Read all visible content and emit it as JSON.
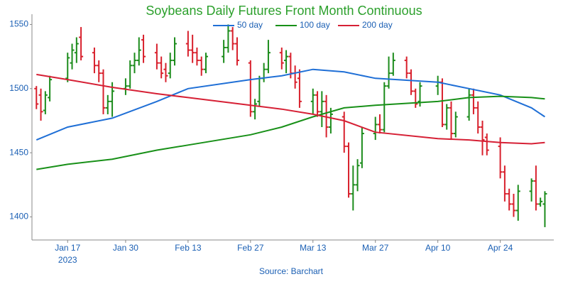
{
  "chart_data": {
    "type": "ohlc",
    "title": "Soybeans Daily Futures Front Month Continuous",
    "source": "Source: Barchart",
    "year_label": "2023",
    "up_color": "#1c8c1c",
    "down_color": "#d8202c",
    "xlim": [
      9,
      126
    ],
    "xticks": [
      {
        "value": 17,
        "label": "Jan 17"
      },
      {
        "value": 30,
        "label": "Jan 30"
      },
      {
        "value": 44,
        "label": "Feb 13"
      },
      {
        "value": 58,
        "label": "Feb 27"
      },
      {
        "value": 72,
        "label": "Mar 13"
      },
      {
        "value": 86,
        "label": "Mar 27"
      },
      {
        "value": 100,
        "label": "Apr 10"
      },
      {
        "value": 114,
        "label": "Apr 24"
      }
    ],
    "ylim": [
      1382,
      1558
    ],
    "yticks": [
      1400,
      1450,
      1500,
      1550
    ],
    "x": [
      10,
      11,
      12,
      13,
      17,
      18,
      19,
      20,
      23,
      24,
      25,
      26,
      27,
      30,
      31,
      32,
      33,
      34,
      37,
      38,
      39,
      40,
      41,
      44,
      45,
      46,
      47,
      48,
      52,
      53,
      54,
      55,
      58,
      59,
      60,
      61,
      62,
      65,
      66,
      67,
      68,
      69,
      72,
      73,
      74,
      75,
      76,
      79,
      80,
      81,
      82,
      83,
      86,
      87,
      88,
      89,
      90,
      93,
      94,
      95,
      96,
      100,
      101,
      102,
      103,
      104,
      107,
      108,
      109,
      110,
      111,
      114,
      115,
      116,
      117,
      118,
      121,
      122,
      123,
      124
    ],
    "open": [
      1500,
      1495,
      1483,
      1493,
      1508,
      1520,
      1528,
      1540,
      1528,
      1518,
      1512,
      1485,
      1490,
      1500,
      1502,
      1518,
      1522,
      1538,
      1528,
      1520,
      1515,
      1512,
      1522,
      1535,
      1530,
      1528,
      1522,
      1515,
      1525,
      1532,
      1545,
      1535,
      1520,
      1482,
      1490,
      1508,
      1515,
      1528,
      1522,
      1525,
      1512,
      1508,
      1490,
      1495,
      1482,
      1490,
      1470,
      1478,
      1455,
      1418,
      1425,
      1442,
      1465,
      1472,
      1468,
      1502,
      1512,
      1522,
      1512,
      1498,
      1490,
      1502,
      1505,
      1472,
      1485,
      1465,
      1478,
      1495,
      1485,
      1470,
      1462,
      1455,
      1435,
      1418,
      1410,
      1405,
      1420,
      1428,
      1410,
      1410
    ],
    "high": [
      1502,
      1500,
      1498,
      1510,
      1528,
      1535,
      1540,
      1548,
      1532,
      1522,
      1515,
      1495,
      1505,
      1508,
      1522,
      1528,
      1540,
      1542,
      1535,
      1525,
      1520,
      1528,
      1540,
      1545,
      1542,
      1532,
      1525,
      1528,
      1538,
      1550,
      1548,
      1540,
      1522,
      1492,
      1510,
      1520,
      1538,
      1532,
      1530,
      1528,
      1518,
      1515,
      1500,
      1498,
      1498,
      1495,
      1485,
      1482,
      1458,
      1440,
      1445,
      1470,
      1478,
      1480,
      1505,
      1525,
      1528,
      1525,
      1515,
      1500,
      1505,
      1510,
      1508,
      1488,
      1490,
      1482,
      1500,
      1500,
      1490,
      1475,
      1465,
      1462,
      1440,
      1422,
      1418,
      1425,
      1430,
      1440,
      1415,
      1420
    ],
    "low": [
      1484,
      1475,
      1480,
      1490,
      1505,
      1515,
      1520,
      1522,
      1512,
      1505,
      1480,
      1480,
      1478,
      1495,
      1500,
      1512,
      1518,
      1520,
      1515,
      1508,
      1505,
      1508,
      1518,
      1525,
      1520,
      1518,
      1510,
      1512,
      1520,
      1528,
      1530,
      1518,
      1478,
      1476,
      1486,
      1505,
      1512,
      1515,
      1512,
      1508,
      1500,
      1485,
      1480,
      1478,
      1470,
      1462,
      1465,
      1450,
      1415,
      1405,
      1420,
      1438,
      1460,
      1465,
      1466,
      1500,
      1510,
      1508,
      1495,
      1485,
      1486,
      1495,
      1470,
      1468,
      1460,
      1462,
      1475,
      1480,
      1465,
      1448,
      1448,
      1430,
      1412,
      1405,
      1400,
      1397,
      1412,
      1405,
      1408,
      1392
    ],
    "close": [
      1488,
      1482,
      1495,
      1507,
      1524,
      1530,
      1535,
      1525,
      1518,
      1512,
      1485,
      1490,
      1498,
      1502,
      1518,
      1522,
      1530,
      1525,
      1520,
      1512,
      1510,
      1522,
      1535,
      1530,
      1528,
      1522,
      1515,
      1525,
      1532,
      1545,
      1535,
      1522,
      1482,
      1488,
      1508,
      1515,
      1528,
      1520,
      1525,
      1512,
      1505,
      1490,
      1495,
      1482,
      1490,
      1470,
      1480,
      1455,
      1418,
      1425,
      1440,
      1465,
      1472,
      1468,
      1502,
      1512,
      1522,
      1512,
      1498,
      1488,
      1502,
      1505,
      1472,
      1485,
      1465,
      1478,
      1495,
      1485,
      1470,
      1460,
      1452,
      1435,
      1418,
      1410,
      1405,
      1420,
      1428,
      1410,
      1412,
      1418
    ],
    "series": [
      {
        "name": "50 day",
        "color": "#1f6fd6",
        "x": [
          10,
          17,
          27,
          37,
          44,
          58,
          65,
          72,
          79,
          86,
          100,
          107,
          114,
          121,
          124
        ],
        "values": [
          1460,
          1470,
          1477,
          1490,
          1500,
          1507,
          1510,
          1515,
          1513,
          1508,
          1505,
          1500,
          1495,
          1485,
          1478
        ]
      },
      {
        "name": "100 day",
        "color": "#189018",
        "x": [
          10,
          17,
          27,
          37,
          44,
          58,
          65,
          72,
          79,
          86,
          100,
          107,
          114,
          121,
          124
        ],
        "values": [
          1437,
          1441,
          1445,
          1452,
          1456,
          1464,
          1470,
          1478,
          1485,
          1487,
          1490,
          1493,
          1494,
          1493,
          1492
        ]
      },
      {
        "name": "200 day",
        "color": "#d62035",
        "x": [
          10,
          17,
          27,
          37,
          44,
          58,
          65,
          72,
          79,
          86,
          100,
          107,
          114,
          121,
          124
        ],
        "values": [
          1511,
          1507,
          1501,
          1496,
          1493,
          1487,
          1484,
          1480,
          1475,
          1466,
          1461,
          1460,
          1458,
          1457,
          1458
        ]
      }
    ]
  }
}
